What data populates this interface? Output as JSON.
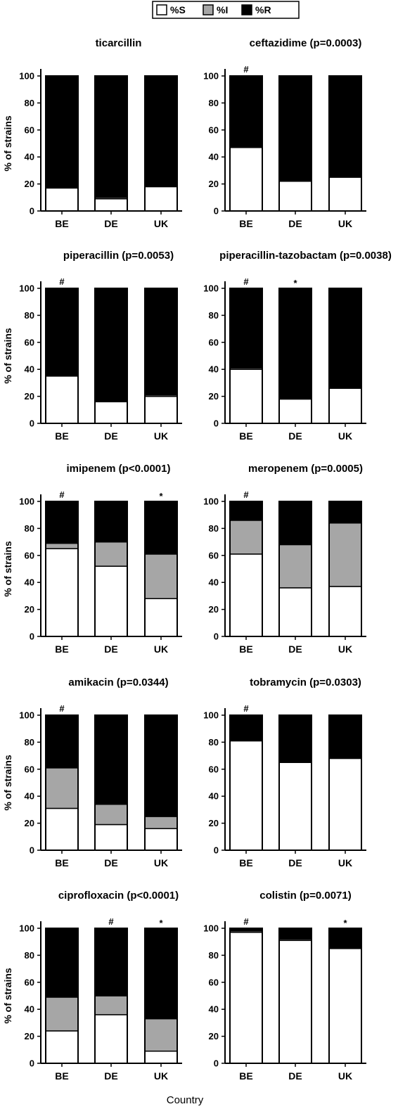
{
  "legend": [
    {
      "label": "%S",
      "color": "#ffffff"
    },
    {
      "label": "%I",
      "color": "#a6a6a6"
    },
    {
      "label": "%R",
      "color": "#000000"
    }
  ],
  "xlabel": "Country",
  "ylabel": "% of strains",
  "chart_data": [
    {
      "type": "bar",
      "title": "ticarcillin",
      "categories": [
        "BE",
        "DE",
        "UK"
      ],
      "stacked": true,
      "series": [
        {
          "name": "%S",
          "values": [
            17,
            9,
            18
          ]
        },
        {
          "name": "%I",
          "values": [
            0,
            1,
            0
          ]
        },
        {
          "name": "%R",
          "values": [
            83,
            90,
            82
          ]
        }
      ],
      "markers": [
        "",
        "",
        ""
      ],
      "ylim": [
        0,
        100
      ],
      "yticks": [
        0,
        20,
        40,
        60,
        80,
        100
      ]
    },
    {
      "type": "bar",
      "title": "ceftazidime (p=0.0003)",
      "categories": [
        "BE",
        "DE",
        "UK"
      ],
      "stacked": true,
      "series": [
        {
          "name": "%S",
          "values": [
            47,
            22,
            25
          ]
        },
        {
          "name": "%I",
          "values": [
            0,
            0,
            0
          ]
        },
        {
          "name": "%R",
          "values": [
            53,
            78,
            75
          ]
        }
      ],
      "markers": [
        "#",
        "",
        ""
      ],
      "ylim": [
        0,
        100
      ],
      "yticks": [
        0,
        20,
        40,
        60,
        80,
        100
      ]
    },
    {
      "type": "bar",
      "title": "piperacillin (p=0.0053)",
      "categories": [
        "BE",
        "DE",
        "UK"
      ],
      "stacked": true,
      "series": [
        {
          "name": "%S",
          "values": [
            35,
            16,
            20
          ]
        },
        {
          "name": "%I",
          "values": [
            0,
            0,
            1
          ]
        },
        {
          "name": "%R",
          "values": [
            65,
            84,
            79
          ]
        }
      ],
      "markers": [
        "#",
        "",
        ""
      ],
      "ylim": [
        0,
        100
      ],
      "yticks": [
        0,
        20,
        40,
        60,
        80,
        100
      ]
    },
    {
      "type": "bar",
      "title": "piperacillin-tazobactam (p=0.0038)",
      "categories": [
        "BE",
        "DE",
        "UK"
      ],
      "stacked": true,
      "series": [
        {
          "name": "%S",
          "values": [
            40,
            18,
            26
          ]
        },
        {
          "name": "%I",
          "values": [
            1,
            0,
            0
          ]
        },
        {
          "name": "%R",
          "values": [
            59,
            82,
            74
          ]
        }
      ],
      "markers": [
        "#",
        "*",
        ""
      ],
      "ylim": [
        0,
        100
      ],
      "yticks": [
        0,
        20,
        40,
        60,
        80,
        100
      ]
    },
    {
      "type": "bar",
      "title": "imipenem (p<0.0001)",
      "categories": [
        "BE",
        "DE",
        "UK"
      ],
      "stacked": true,
      "series": [
        {
          "name": "%S",
          "values": [
            65,
            52,
            28
          ]
        },
        {
          "name": "%I",
          "values": [
            4,
            18,
            33
          ]
        },
        {
          "name": "%R",
          "values": [
            31,
            30,
            39
          ]
        }
      ],
      "markers": [
        "#",
        "",
        "*"
      ],
      "ylim": [
        0,
        100
      ],
      "yticks": [
        0,
        20,
        40,
        60,
        80,
        100
      ]
    },
    {
      "type": "bar",
      "title": "meropenem (p=0.0005)",
      "categories": [
        "BE",
        "DE",
        "UK"
      ],
      "stacked": true,
      "series": [
        {
          "name": "%S",
          "values": [
            61,
            36,
            37
          ]
        },
        {
          "name": "%I",
          "values": [
            25,
            32,
            47
          ]
        },
        {
          "name": "%R",
          "values": [
            14,
            32,
            16
          ]
        }
      ],
      "markers": [
        "#",
        "",
        ""
      ],
      "ylim": [
        0,
        100
      ],
      "yticks": [
        0,
        20,
        40,
        60,
        80,
        100
      ]
    },
    {
      "type": "bar",
      "title": "amikacin (p=0.0344)",
      "categories": [
        "BE",
        "DE",
        "UK"
      ],
      "stacked": true,
      "series": [
        {
          "name": "%S",
          "values": [
            31,
            19,
            16
          ]
        },
        {
          "name": "%I",
          "values": [
            30,
            15,
            9
          ]
        },
        {
          "name": "%R",
          "values": [
            39,
            66,
            75
          ]
        }
      ],
      "markers": [
        "#",
        "",
        ""
      ],
      "ylim": [
        0,
        100
      ],
      "yticks": [
        0,
        20,
        40,
        60,
        80,
        100
      ]
    },
    {
      "type": "bar",
      "title": "tobramycin (p=0.0303)",
      "categories": [
        "BE",
        "DE",
        "UK"
      ],
      "stacked": true,
      "series": [
        {
          "name": "%S",
          "values": [
            81,
            65,
            68
          ]
        },
        {
          "name": "%I",
          "values": [
            0,
            0,
            0
          ]
        },
        {
          "name": "%R",
          "values": [
            19,
            35,
            32
          ]
        }
      ],
      "markers": [
        "#",
        "",
        ""
      ],
      "ylim": [
        0,
        100
      ],
      "yticks": [
        0,
        20,
        40,
        60,
        80,
        100
      ]
    },
    {
      "type": "bar",
      "title": "ciprofloxacin (p<0.0001)",
      "categories": [
        "BE",
        "DE",
        "UK"
      ],
      "stacked": true,
      "series": [
        {
          "name": "%S",
          "values": [
            24,
            36,
            9
          ]
        },
        {
          "name": "%I",
          "values": [
            25,
            14,
            24
          ]
        },
        {
          "name": "%R",
          "values": [
            51,
            50,
            67
          ]
        }
      ],
      "markers": [
        "",
        "#",
        "*"
      ],
      "ylim": [
        0,
        100
      ],
      "yticks": [
        0,
        20,
        40,
        60,
        80,
        100
      ]
    },
    {
      "type": "bar",
      "title": "colistin (p=0.0071)",
      "categories": [
        "BE",
        "DE",
        "UK"
      ],
      "stacked": true,
      "series": [
        {
          "name": "%S",
          "values": [
            97,
            91,
            85
          ]
        },
        {
          "name": "%I",
          "values": [
            1,
            1,
            0
          ]
        },
        {
          "name": "%R",
          "values": [
            2,
            8,
            15
          ]
        }
      ],
      "markers": [
        "#",
        "",
        "*"
      ],
      "ylim": [
        0,
        100
      ],
      "yticks": [
        0,
        20,
        40,
        60,
        80,
        100
      ]
    }
  ]
}
